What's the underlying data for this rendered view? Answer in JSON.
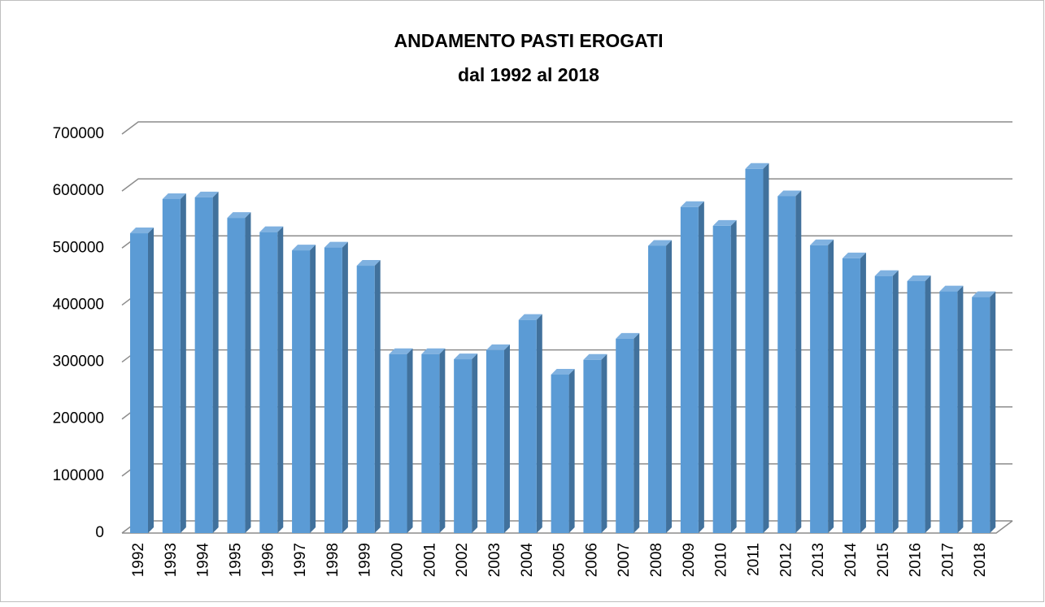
{
  "chart_data": {
    "type": "bar3d",
    "title": "ANDAMENTO PASTI EROGATI",
    "subtitle": "dal 1992 al 2018",
    "categories": [
      "1992",
      "1993",
      "1994",
      "1995",
      "1996",
      "1997",
      "1998",
      "1999",
      "2000",
      "2001",
      "2002",
      "2003",
      "2004",
      "2005",
      "2006",
      "2007",
      "2008",
      "2009",
      "2010",
      "2011",
      "2012",
      "2013",
      "2014",
      "2015",
      "2016",
      "2017",
      "2018"
    ],
    "values": [
      526000,
      586000,
      589000,
      553000,
      528000,
      496000,
      501000,
      469000,
      314000,
      314000,
      305000,
      321000,
      374000,
      278000,
      304000,
      341000,
      504000,
      572000,
      539000,
      639000,
      591000,
      505000,
      482000,
      451000,
      442000,
      424000,
      414000
    ],
    "color": "#5b9bd5",
    "ylim": [
      0,
      700000
    ],
    "yticks": [
      0,
      100000,
      200000,
      300000,
      400000,
      500000,
      600000,
      700000
    ],
    "grid": true
  }
}
